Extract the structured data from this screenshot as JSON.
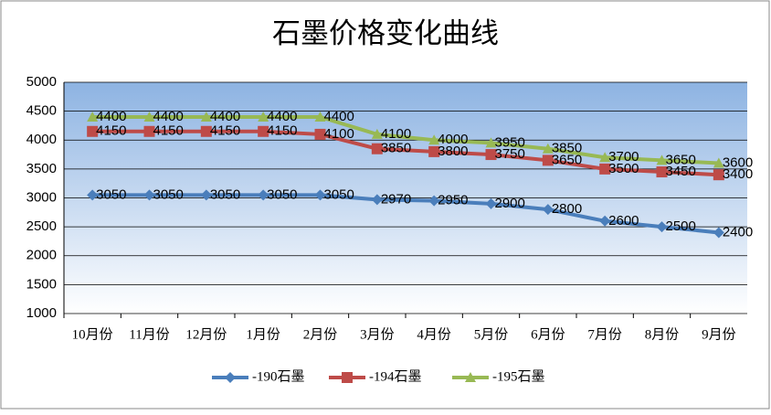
{
  "chart_data": {
    "type": "line",
    "title": "石墨价格变化曲线",
    "categories": [
      "10月份",
      "11月份",
      "12月份",
      "1月份",
      "2月份",
      "3月份",
      "4月份",
      "5月份",
      "6月份",
      "7月份",
      "8月份",
      "9月份"
    ],
    "series": [
      {
        "name": "-190石墨",
        "color": "#4a7ebb",
        "marker": "diamond",
        "values": [
          3050,
          3050,
          3050,
          3050,
          3050,
          2970,
          2950,
          2900,
          2800,
          2600,
          2500,
          2400
        ]
      },
      {
        "name": "-194石墨",
        "color": "#be4b48",
        "marker": "square",
        "values": [
          4150,
          4150,
          4150,
          4150,
          4100,
          3850,
          3800,
          3750,
          3650,
          3500,
          3450,
          3400
        ]
      },
      {
        "name": "-195石墨",
        "color": "#98b954",
        "marker": "triangle",
        "values": [
          4400,
          4400,
          4400,
          4400,
          4400,
          4100,
          4000,
          3950,
          3850,
          3700,
          3650,
          3600
        ]
      }
    ],
    "ylim": [
      1000,
      5000
    ],
    "yticks": [
      1000,
      1500,
      2000,
      2500,
      3000,
      3500,
      4000,
      4500,
      5000
    ],
    "grid": true,
    "legend": "bottom"
  }
}
